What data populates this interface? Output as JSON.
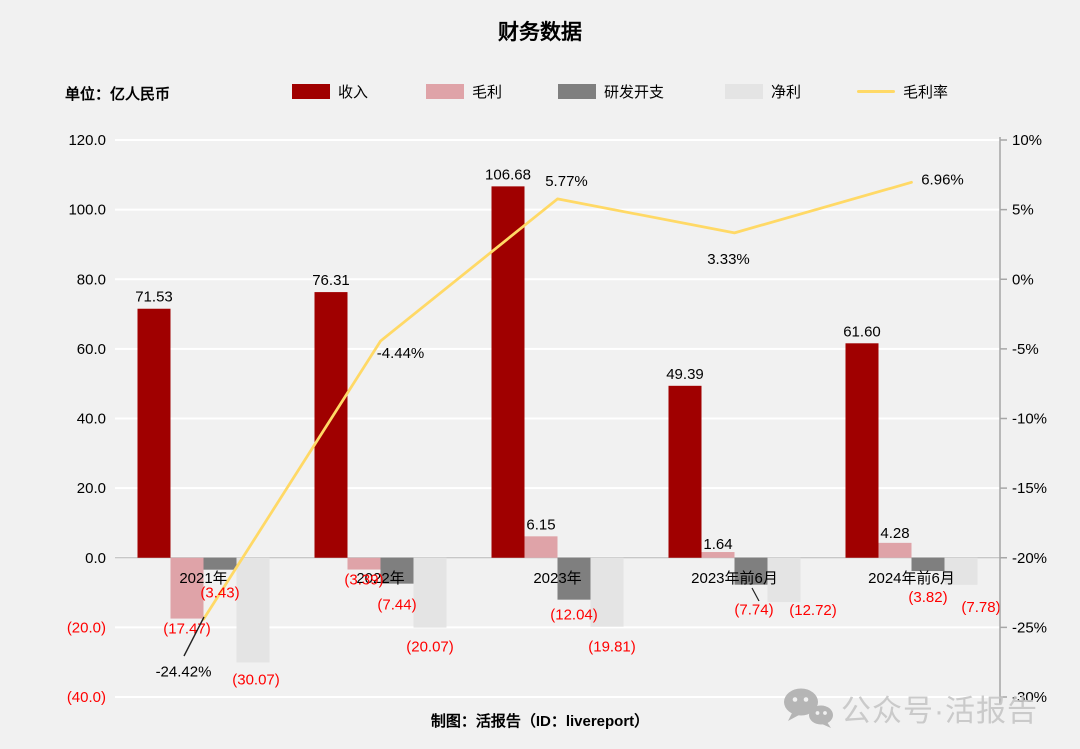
{
  "title": "财务数据",
  "unit_label": "单位：亿人民币",
  "footer": "制图：活报告（ID：livereport）",
  "watermark": {
    "icon": "wechat-icon",
    "text": "公众号·活报告"
  },
  "colors": {
    "background": "#F1F1F1",
    "revenue": "#A00000",
    "gross_profit": "#DFA3A8",
    "rd_expense": "#7F7F7F",
    "net_profit": "#E4E4E4",
    "margin_line": "#FFD966",
    "negative_label": "#FF0000",
    "grid": "#FFFFFF",
    "axis": "#A6A6A6",
    "watermark_text": "#C6C6C6"
  },
  "chart_data": {
    "type": "bar",
    "title": "财务数据",
    "unit": "亿人民币",
    "legend_position": "top",
    "grid": true,
    "categories": [
      "2021年",
      "2022年",
      "2023年",
      "2023年前6月",
      "2024年前6月"
    ],
    "series": [
      {
        "key": "revenue",
        "name": "收入",
        "type": "bar",
        "color": "#A00000",
        "values": [
          71.53,
          76.31,
          106.68,
          49.39,
          61.6
        ],
        "labels": [
          "71.53",
          "76.31",
          "106.68",
          "49.39",
          "61.60"
        ]
      },
      {
        "key": "gross-profit",
        "name": "毛利",
        "type": "bar",
        "color": "#DFA3A8",
        "values": [
          -17.47,
          -3.39,
          6.15,
          1.64,
          4.28
        ],
        "labels": [
          "(17.47)",
          "(3.39)",
          "6.15",
          "1.64",
          "4.28"
        ]
      },
      {
        "key": "rd-expense",
        "name": "研发开支",
        "type": "bar",
        "color": "#7F7F7F",
        "values": [
          -3.43,
          -7.44,
          -12.04,
          -7.74,
          -3.82
        ],
        "labels": [
          "(3.43)",
          "(7.44)",
          "(12.04)",
          "(7.74)",
          "(3.82)"
        ]
      },
      {
        "key": "net-profit",
        "name": "净利",
        "type": "bar",
        "color": "#E4E4E4",
        "values": [
          -30.07,
          -20.07,
          -19.81,
          -12.72,
          -7.78
        ],
        "labels": [
          "(30.07)",
          "(20.07)",
          "(19.81)",
          "(12.72)",
          "(7.78)"
        ]
      },
      {
        "key": "gross-margin",
        "name": "毛利率",
        "type": "line",
        "axis": "right",
        "color": "#FFD966",
        "values": [
          -24.42,
          -4.44,
          5.77,
          3.33,
          6.96
        ],
        "labels": [
          "-24.42%",
          "-4.44%",
          "5.77%",
          "3.33%",
          "6.96%"
        ]
      }
    ],
    "left_axis": {
      "values": [
        120,
        100,
        80,
        60,
        40,
        20,
        0,
        -20,
        -40
      ],
      "labels": [
        "120.0",
        "100.0",
        "80.0",
        "60.0",
        "40.0",
        "20.0",
        "0.0",
        "(20.0)",
        "(40.0)"
      ],
      "range": [
        -40,
        120
      ]
    },
    "right_axis": {
      "values": [
        10,
        5,
        0,
        -5,
        -10,
        -15,
        -20,
        -25,
        -30
      ],
      "labels": [
        "10%",
        "5%",
        "0%",
        "-5%",
        "-10%",
        "-15%",
        "-20%",
        "-25%",
        "-30%"
      ],
      "range": [
        -30,
        10
      ]
    }
  }
}
